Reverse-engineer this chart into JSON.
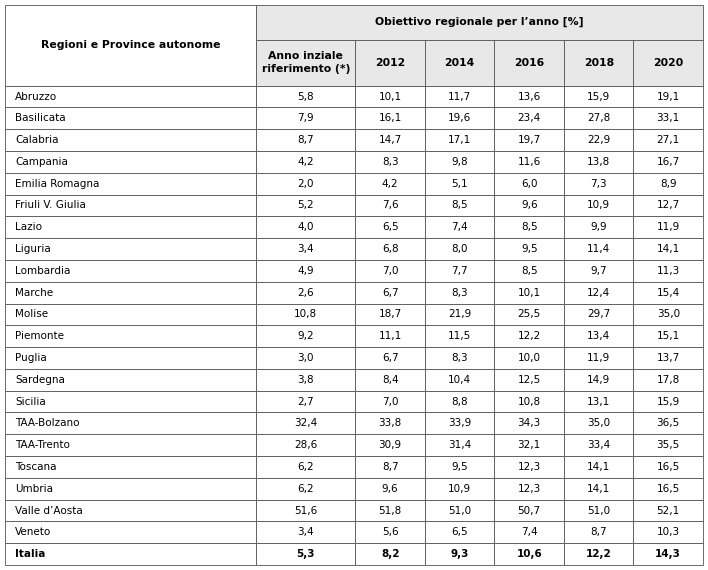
{
  "col_header_main": "Obiettivo regionale per l’anno [%]",
  "col_header_left": "Regioni e Province autonome",
  "col_header_ref": "Anno inziale\nriferimento (*)",
  "years": [
    "2012",
    "2014",
    "2016",
    "2018",
    "2020"
  ],
  "regions": [
    "Abruzzo",
    "Basilicata",
    "Calabria",
    "Campania",
    "Emilia Romagna",
    "Friuli V. Giulia",
    "Lazio",
    "Liguria",
    "Lombardia",
    "Marche",
    "Molise",
    "Piemonte",
    "Puglia",
    "Sardegna",
    "Sicilia",
    "TAA-Bolzano",
    "TAA-Trento",
    "Toscana",
    "Umbria",
    "Valle d’Aosta",
    "Veneto",
    "Italia"
  ],
  "data": [
    [
      5.8,
      10.1,
      11.7,
      13.6,
      15.9,
      19.1
    ],
    [
      7.9,
      16.1,
      19.6,
      23.4,
      27.8,
      33.1
    ],
    [
      8.7,
      14.7,
      17.1,
      19.7,
      22.9,
      27.1
    ],
    [
      4.2,
      8.3,
      9.8,
      11.6,
      13.8,
      16.7
    ],
    [
      2.0,
      4.2,
      5.1,
      6.0,
      7.3,
      8.9
    ],
    [
      5.2,
      7.6,
      8.5,
      9.6,
      10.9,
      12.7
    ],
    [
      4.0,
      6.5,
      7.4,
      8.5,
      9.9,
      11.9
    ],
    [
      3.4,
      6.8,
      8.0,
      9.5,
      11.4,
      14.1
    ],
    [
      4.9,
      7.0,
      7.7,
      8.5,
      9.7,
      11.3
    ],
    [
      2.6,
      6.7,
      8.3,
      10.1,
      12.4,
      15.4
    ],
    [
      10.8,
      18.7,
      21.9,
      25.5,
      29.7,
      35.0
    ],
    [
      9.2,
      11.1,
      11.5,
      12.2,
      13.4,
      15.1
    ],
    [
      3.0,
      6.7,
      8.3,
      10.0,
      11.9,
      13.7
    ],
    [
      3.8,
      8.4,
      10.4,
      12.5,
      14.9,
      17.8
    ],
    [
      2.7,
      7.0,
      8.8,
      10.8,
      13.1,
      15.9
    ],
    [
      32.4,
      33.8,
      33.9,
      34.3,
      35.0,
      36.5
    ],
    [
      28.6,
      30.9,
      31.4,
      32.1,
      33.4,
      35.5
    ],
    [
      6.2,
      8.7,
      9.5,
      12.3,
      14.1,
      16.5
    ],
    [
      6.2,
      9.6,
      10.9,
      12.3,
      14.1,
      16.5
    ],
    [
      51.6,
      51.8,
      51.0,
      50.7,
      51.0,
      52.1
    ],
    [
      3.4,
      5.6,
      6.5,
      7.4,
      8.7,
      10.3
    ],
    [
      5.3,
      8.2,
      9.3,
      10.6,
      12.2,
      14.3
    ]
  ],
  "background_color": "#ffffff",
  "header_bg": "#e8e8e8",
  "line_color": "#555555",
  "text_color": "#000000",
  "font_size": 7.5,
  "header_font_size": 7.8
}
